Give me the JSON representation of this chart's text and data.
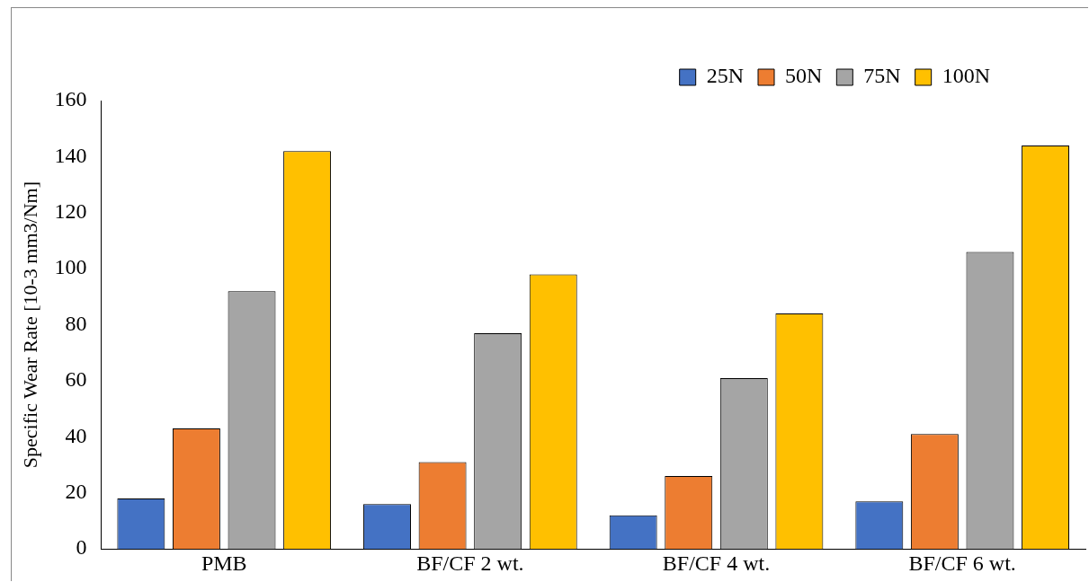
{
  "chart_data": {
    "type": "bar",
    "ylabel": "Specific Wear Rate [10-3 mm3/Nm]",
    "categories": [
      "PMB",
      "BF/CF 2 wt.",
      "BF/CF 4 wt.",
      "BF/CF 6 wt."
    ],
    "series": [
      {
        "name": "25N",
        "color": "#4472c4",
        "values": [
          18,
          16,
          12,
          17
        ]
      },
      {
        "name": "50N",
        "color": "#ed7d31",
        "values": [
          43,
          31,
          26,
          41
        ]
      },
      {
        "name": "75N",
        "color": "#a5a5a5",
        "values": [
          92,
          77,
          61,
          106
        ]
      },
      {
        "name": "100N",
        "color": "#ffc000",
        "values": [
          142,
          98,
          84,
          144
        ]
      }
    ],
    "ylim": [
      0,
      160
    ],
    "yticks": [
      0,
      20,
      40,
      60,
      80,
      100,
      120,
      140,
      160
    ],
    "grid": false,
    "legend": "top right"
  }
}
